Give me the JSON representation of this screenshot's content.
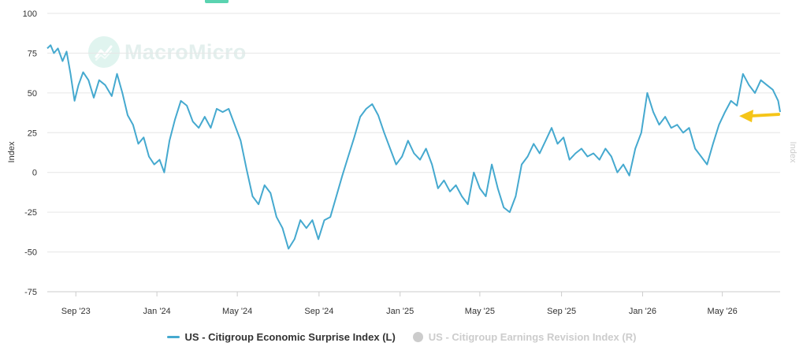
{
  "brand": {
    "watermark": "MacroMicro",
    "icon": "macromicro-logo-icon"
  },
  "colors": {
    "series_main": "#45a9cf",
    "series_muted": "#cccccc",
    "arrow": "#f5c518",
    "grid": "#e6e6e6",
    "badge": "#5ad3b0"
  },
  "legend": {
    "items": [
      {
        "label": "US - Citigroup Economic Surprise Index (L)",
        "active": true
      },
      {
        "label": "US - Citigroup Earnings Revision Index (R)",
        "active": false
      }
    ]
  },
  "chart_data": {
    "type": "line",
    "ylabel": "Index",
    "y2label": "Index",
    "ylim": [
      -75,
      100
    ],
    "yticks": [
      100,
      75,
      50,
      25,
      0,
      -25,
      -50,
      -75
    ],
    "xlim": [
      "2023-07-20",
      "2026-07-27"
    ],
    "xticks": [
      {
        "label": "Sep '23",
        "date": "2023-09-01"
      },
      {
        "label": "Jan '24",
        "date": "2024-01-01"
      },
      {
        "label": "May '24",
        "date": "2024-05-01"
      },
      {
        "label": "Sep '24",
        "date": "2024-09-01"
      },
      {
        "label": "Jan '25",
        "date": "2025-01-01"
      },
      {
        "label": "May '25",
        "date": "2025-05-01"
      },
      {
        "label": "Sep '25",
        "date": "2025-09-01"
      },
      {
        "label": "Jan '26",
        "date": "2026-01-01"
      },
      {
        "label": "May '26",
        "date": "2026-05-01"
      }
    ],
    "grid": true,
    "annotation": {
      "type": "arrow",
      "color": "#f5c518",
      "points_to": {
        "date": "2026-05-24",
        "value": 38
      }
    },
    "series": [
      {
        "name": "US - Citigroup Economic Surprise Index (L)",
        "points": [
          [
            "2023-07-20",
            78
          ],
          [
            "2023-07-25",
            80
          ],
          [
            "2023-07-30",
            75
          ],
          [
            "2023-08-05",
            78
          ],
          [
            "2023-08-12",
            70
          ],
          [
            "2023-08-18",
            76
          ],
          [
            "2023-08-24",
            62
          ],
          [
            "2023-08-30",
            45
          ],
          [
            "2023-09-05",
            55
          ],
          [
            "2023-09-12",
            63
          ],
          [
            "2023-09-20",
            58
          ],
          [
            "2023-09-28",
            47
          ],
          [
            "2023-10-06",
            58
          ],
          [
            "2023-10-15",
            55
          ],
          [
            "2023-10-25",
            48
          ],
          [
            "2023-11-02",
            62
          ],
          [
            "2023-11-10",
            50
          ],
          [
            "2023-11-18",
            36
          ],
          [
            "2023-11-26",
            30
          ],
          [
            "2023-12-04",
            18
          ],
          [
            "2023-12-12",
            22
          ],
          [
            "2023-12-20",
            10
          ],
          [
            "2023-12-28",
            5
          ],
          [
            "2024-01-05",
            8
          ],
          [
            "2024-01-12",
            0
          ],
          [
            "2024-01-20",
            20
          ],
          [
            "2024-01-28",
            33
          ],
          [
            "2024-02-06",
            45
          ],
          [
            "2024-02-15",
            42
          ],
          [
            "2024-02-24",
            32
          ],
          [
            "2024-03-04",
            28
          ],
          [
            "2024-03-13",
            35
          ],
          [
            "2024-03-22",
            28
          ],
          [
            "2024-03-31",
            40
          ],
          [
            "2024-04-09",
            38
          ],
          [
            "2024-04-18",
            40
          ],
          [
            "2024-04-27",
            30
          ],
          [
            "2024-05-06",
            20
          ],
          [
            "2024-05-15",
            2
          ],
          [
            "2024-05-24",
            -15
          ],
          [
            "2024-06-02",
            -20
          ],
          [
            "2024-06-11",
            -8
          ],
          [
            "2024-06-20",
            -13
          ],
          [
            "2024-06-29",
            -28
          ],
          [
            "2024-07-08",
            -35
          ],
          [
            "2024-07-17",
            -48
          ],
          [
            "2024-07-26",
            -42
          ],
          [
            "2024-08-04",
            -30
          ],
          [
            "2024-08-13",
            -35
          ],
          [
            "2024-08-22",
            -30
          ],
          [
            "2024-08-31",
            -42
          ],
          [
            "2024-09-09",
            -30
          ],
          [
            "2024-09-18",
            -28
          ],
          [
            "2024-09-27",
            -15
          ],
          [
            "2024-10-06",
            -2
          ],
          [
            "2024-10-15",
            10
          ],
          [
            "2024-10-24",
            22
          ],
          [
            "2024-11-02",
            35
          ],
          [
            "2024-11-11",
            40
          ],
          [
            "2024-11-20",
            43
          ],
          [
            "2024-11-29",
            36
          ],
          [
            "2024-12-08",
            25
          ],
          [
            "2024-12-17",
            15
          ],
          [
            "2024-12-26",
            5
          ],
          [
            "2025-01-04",
            10
          ],
          [
            "2025-01-13",
            20
          ],
          [
            "2025-01-22",
            12
          ],
          [
            "2025-01-31",
            8
          ],
          [
            "2025-02-09",
            15
          ],
          [
            "2025-02-18",
            5
          ],
          [
            "2025-02-27",
            -10
          ],
          [
            "2025-03-08",
            -5
          ],
          [
            "2025-03-17",
            -12
          ],
          [
            "2025-03-26",
            -8
          ],
          [
            "2025-04-04",
            -15
          ],
          [
            "2025-04-13",
            -20
          ],
          [
            "2025-04-22",
            0
          ],
          [
            "2025-05-01",
            -10
          ],
          [
            "2025-05-10",
            -15
          ],
          [
            "2025-05-19",
            5
          ],
          [
            "2025-05-28",
            -10
          ],
          [
            "2025-06-06",
            -22
          ],
          [
            "2025-06-15",
            -25
          ],
          [
            "2025-06-24",
            -15
          ],
          [
            "2025-07-03",
            5
          ],
          [
            "2025-07-12",
            10
          ],
          [
            "2025-07-21",
            18
          ],
          [
            "2025-07-30",
            12
          ],
          [
            "2025-08-08",
            20
          ],
          [
            "2025-08-17",
            28
          ],
          [
            "2025-08-26",
            18
          ],
          [
            "2025-09-04",
            22
          ],
          [
            "2025-09-13",
            8
          ],
          [
            "2025-09-22",
            12
          ],
          [
            "2025-10-01",
            15
          ],
          [
            "2025-10-10",
            10
          ],
          [
            "2025-10-19",
            12
          ],
          [
            "2025-10-28",
            8
          ],
          [
            "2025-11-06",
            15
          ],
          [
            "2025-11-15",
            10
          ],
          [
            "2025-11-24",
            0
          ],
          [
            "2025-12-03",
            5
          ],
          [
            "2025-12-12",
            -2
          ],
          [
            "2025-12-21",
            15
          ],
          [
            "2025-12-30",
            25
          ],
          [
            "2026-01-08",
            50
          ],
          [
            "2026-01-17",
            38
          ],
          [
            "2026-01-26",
            30
          ],
          [
            "2026-02-04",
            35
          ],
          [
            "2026-02-13",
            28
          ],
          [
            "2026-02-22",
            30
          ],
          [
            "2026-03-03",
            25
          ],
          [
            "2026-03-12",
            28
          ],
          [
            "2026-03-21",
            15
          ],
          [
            "2026-03-30",
            10
          ],
          [
            "2026-04-08",
            5
          ],
          [
            "2026-04-17",
            18
          ],
          [
            "2026-04-26",
            30
          ],
          [
            "2026-05-05",
            38
          ],
          [
            "2026-05-14",
            45
          ],
          [
            "2026-05-23",
            42
          ],
          [
            "2026-06-01",
            62
          ],
          [
            "2026-06-10",
            55
          ],
          [
            "2026-06-19",
            50
          ],
          [
            "2026-06-28",
            58
          ],
          [
            "2026-07-07",
            55
          ],
          [
            "2026-07-16",
            52
          ],
          [
            "2026-07-24",
            45
          ],
          [
            "2026-07-27",
            38
          ]
        ]
      }
    ]
  }
}
